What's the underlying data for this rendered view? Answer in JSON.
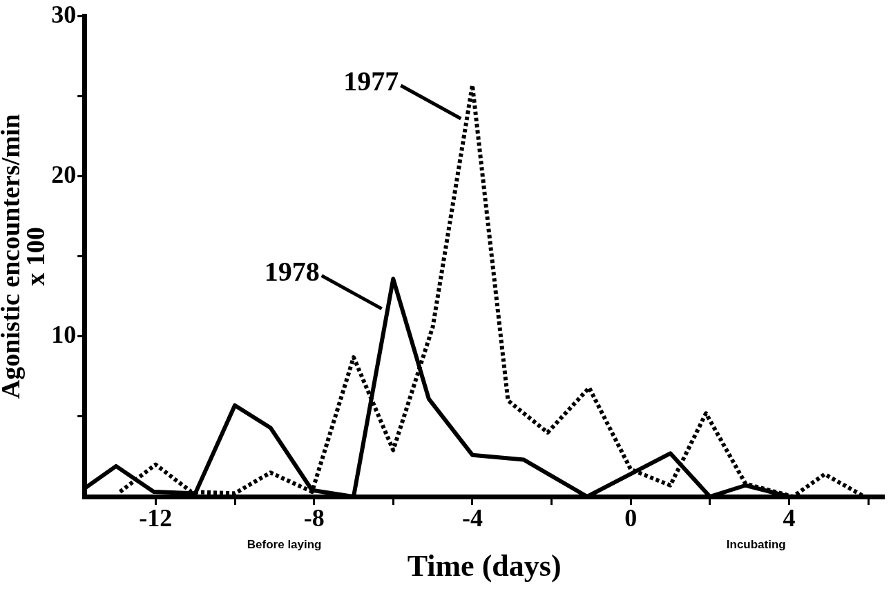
{
  "chart_data": {
    "type": "line",
    "xlabel": "Time (days)",
    "ylabel": "Agonistic encounters/min\nx 100",
    "xlim": [
      -13.8,
      6.4
    ],
    "ylim": [
      0,
      30
    ],
    "xticks": [
      -12,
      {
        "value": -10,
        "label": null
      },
      -8,
      {
        "value": -6,
        "label": null
      },
      -4,
      {
        "value": -2,
        "label": null
      },
      0,
      {
        "value": 2,
        "label": null
      },
      4,
      {
        "value": 6,
        "label": null
      }
    ],
    "yticks": [
      {
        "value": 5,
        "label": null
      },
      10,
      {
        "value": 15,
        "label": null
      },
      20,
      {
        "value": 25,
        "label": null
      },
      30
    ],
    "grid": false,
    "legend": false,
    "marker": "none",
    "series": [
      {
        "name": "1978",
        "color": "#000000",
        "line_style": "solid",
        "x": [
          -13.8,
          -13,
          -12.05,
          -11,
          -10,
          -9.1,
          -8.05,
          -7,
          -6,
          -5.1,
          -4,
          -2.7,
          -1.1,
          1,
          2,
          2.9,
          4
        ],
        "values": [
          0.5,
          1.9,
          0.3,
          0.2,
          5.7,
          4.3,
          0.4,
          0,
          13.6,
          6.1,
          2.6,
          2.3,
          0,
          2.7,
          0,
          0.7,
          0
        ]
      },
      {
        "name": "1977",
        "color": "#000000",
        "line_style": "dotted",
        "x": [
          -12.9,
          -12,
          -11.1,
          -10,
          -9.1,
          -8.05,
          -7,
          -6,
          -5,
          -4,
          -3.1,
          -2.1,
          -1.05,
          0,
          1,
          1.9,
          2.9,
          4.1,
          4.9,
          5.9
        ],
        "values": [
          0.3,
          2.0,
          0.3,
          0.2,
          1.5,
          0.3,
          8.7,
          2.9,
          10.6,
          25.7,
          6.0,
          4.0,
          6.8,
          1.7,
          0.7,
          5.2,
          0.8,
          0,
          1.4,
          0
        ]
      }
    ],
    "annotations": [
      "Before laying",
      "Incubating"
    ]
  }
}
